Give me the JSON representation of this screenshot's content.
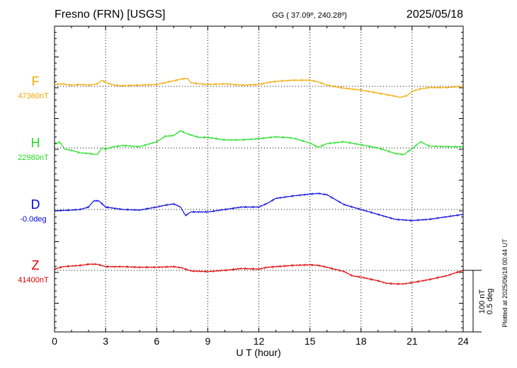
{
  "header": {
    "station": "Fresno (FRN)  [USGS]",
    "coords": "GG ( 37.09º, 240.28º)",
    "date": "2025/05/18"
  },
  "footer_note": "Plotted at 2025/06/18 00:44 UT",
  "chart_data": {
    "type": "line",
    "xlabel": "U T (hour)",
    "xlim": [
      0,
      24
    ],
    "x_ticks": [
      "0",
      "3",
      "6",
      "9",
      "12",
      "15",
      "18",
      "21",
      "24"
    ],
    "grid": true,
    "scale_bar": {
      "top": "100 nT",
      "bottom": "0.5 deg"
    },
    "series": [
      {
        "name": "F",
        "baseline_label": "47360nT",
        "color": "#f0a800",
        "unit_value": 47360,
        "x": [
          0,
          0.5,
          1,
          1.5,
          2,
          2.5,
          2.8,
          3,
          3.5,
          4,
          5,
          6,
          6.5,
          7,
          7.5,
          7.8,
          8,
          8.5,
          9,
          10,
          11,
          12,
          12.5,
          13,
          14,
          15,
          15.5,
          16,
          17,
          18,
          19,
          20,
          20.3,
          20.7,
          21,
          21.5,
          22,
          23,
          24
        ],
        "y": [
          47363,
          47364,
          47362,
          47363,
          47362,
          47364,
          47370,
          47366,
          47362,
          47361,
          47362,
          47363,
          47366,
          47369,
          47372,
          47373,
          47366,
          47364,
          47363,
          47364,
          47362,
          47363,
          47366,
          47368,
          47370,
          47370,
          47367,
          47362,
          47357,
          47354,
          47349,
          47344,
          47342,
          47345,
          47352,
          47356,
          47358,
          47358,
          47360
        ]
      },
      {
        "name": "H",
        "baseline_label": "22980nT",
        "color": "#22dd22",
        "unit_value": 22980,
        "x": [
          0,
          0.3,
          0.6,
          1,
          1.5,
          2,
          2.5,
          2.8,
          3,
          3.5,
          4,
          5,
          6,
          6.5,
          7,
          7.4,
          7.7,
          8,
          8.5,
          9,
          10,
          11,
          12,
          13,
          14,
          15,
          15.5,
          16,
          17,
          18,
          19,
          20,
          20.5,
          21,
          21.5,
          22,
          23,
          24
        ],
        "y": [
          22985,
          22990,
          22978,
          22976,
          22972,
          22971,
          22969,
          22980,
          22978,
          22982,
          22984,
          22982,
          22990,
          22999,
          23000,
          23008,
          23004,
          23001,
          22997,
          22997,
          22993,
          22993,
          22995,
          22998,
          22996,
          22988,
          22981,
          22987,
          22990,
          22985,
          22980,
          22971,
          22969,
          22979,
          22990,
          22983,
          22982,
          22982
        ]
      },
      {
        "name": "D",
        "baseline_label": "-0.0deg",
        "color": "#0000dd",
        "unit_value": 0,
        "x": [
          0,
          0.5,
          1,
          1.5,
          2,
          2.3,
          2.6,
          3,
          4,
          5,
          6,
          6.5,
          7,
          7.4,
          7.7,
          8,
          8.5,
          9,
          10,
          11,
          12,
          12.5,
          13,
          14,
          15,
          15.5,
          16,
          16.5,
          17,
          18,
          19,
          20,
          20.5,
          21,
          22,
          23,
          24
        ],
        "y": [
          -0.01,
          -0.008,
          -0.005,
          0.0,
          0.02,
          0.07,
          0.07,
          0.02,
          0.0,
          -0.005,
          0.02,
          0.035,
          0.045,
          0.02,
          -0.05,
          -0.02,
          -0.02,
          -0.02,
          0.0,
          0.02,
          0.02,
          0.05,
          0.09,
          0.11,
          0.125,
          0.13,
          0.12,
          0.08,
          0.04,
          0.0,
          -0.04,
          -0.08,
          -0.085,
          -0.09,
          -0.08,
          -0.06,
          -0.04
        ]
      },
      {
        "name": "Z",
        "baseline_label": "41400nT",
        "color": "#dd0000",
        "unit_value": 41400,
        "x": [
          0,
          0.5,
          1,
          1.5,
          2,
          2.5,
          3,
          4,
          5,
          6,
          7,
          7.5,
          8,
          9,
          10,
          11,
          12,
          12.5,
          13,
          14,
          15,
          15.5,
          16,
          17,
          17.5,
          18,
          19,
          19.5,
          20,
          20.5,
          21,
          22,
          23,
          24
        ],
        "y": [
          41402,
          41406,
          41407,
          41408,
          41410,
          41410,
          41406,
          41406,
          41405,
          41405,
          41406,
          41404,
          41399,
          41398,
          41400,
          41403,
          41402,
          41405,
          41406,
          41408,
          41409,
          41408,
          41405,
          41398,
          41391,
          41389,
          41383,
          41379,
          41378,
          41378,
          41380,
          41385,
          41391,
          41400
        ]
      }
    ]
  }
}
